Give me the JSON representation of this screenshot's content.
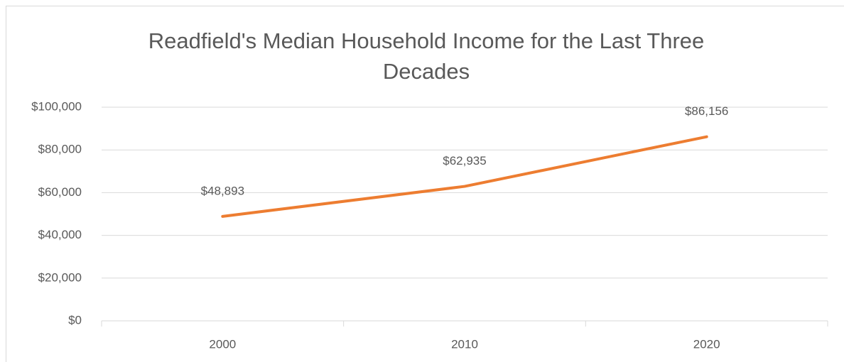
{
  "chart_data": {
    "type": "line",
    "title": "Readfield's Median Household Income for the Last Three Decades",
    "categories": [
      "2000",
      "2010",
      "2020"
    ],
    "values": [
      48893,
      62935,
      86156
    ],
    "value_labels": [
      "$48,893",
      "$62,935",
      "$86,156"
    ],
    "color": "#ed7d31",
    "ylim": [
      0,
      100000
    ],
    "yticks": [
      {
        "value": 0,
        "label": "$0"
      },
      {
        "value": 20000,
        "label": "$20,000"
      },
      {
        "value": 40000,
        "label": "$40,000"
      },
      {
        "value": 60000,
        "label": "$60,000"
      },
      {
        "value": 80000,
        "label": "$80,000"
      },
      {
        "value": 100000,
        "label": "$100,000"
      }
    ],
    "grid": true
  }
}
